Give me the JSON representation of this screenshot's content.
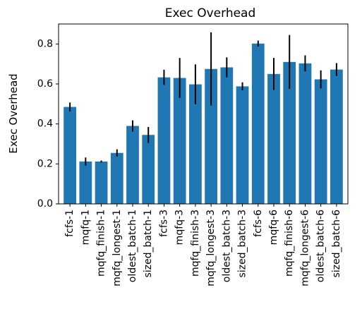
{
  "chart_data": {
    "type": "bar",
    "title": "Exec Overhead",
    "xlabel": "",
    "ylabel": "Exec Overhead",
    "ylim": [
      0,
      0.9
    ],
    "yticks": [
      0.0,
      0.2,
      0.4,
      0.6,
      0.8
    ],
    "ytick_labels": [
      "0.0",
      "0.2",
      "0.4",
      "0.6",
      "0.8"
    ],
    "grid": false,
    "bar_color": "#1f77b4",
    "error_color": "#000000",
    "categories": [
      "fcfs-1",
      "mqfq-1",
      "mqfq_finish-1",
      "mqfq_longest-1",
      "oldest_batch-1",
      "sized_batch-1",
      "fcfs-3",
      "mqfq-3",
      "mqfq_finish-3",
      "mqfq_longest-3",
      "oldest_batch-3",
      "sized_batch-3",
      "fcfs-6",
      "mqfq-6",
      "mqfq_finish-6",
      "mqfq_longest-6",
      "oldest_batch-6",
      "sized_batch-6"
    ],
    "values": [
      0.485,
      0.212,
      0.212,
      0.255,
      0.39,
      0.345,
      0.633,
      0.63,
      0.598,
      0.675,
      0.683,
      0.588,
      0.802,
      0.65,
      0.71,
      0.703,
      0.623,
      0.672
    ],
    "errors": [
      0.022,
      0.02,
      0.005,
      0.018,
      0.028,
      0.04,
      0.038,
      0.1,
      0.1,
      0.183,
      0.05,
      0.02,
      0.015,
      0.08,
      0.135,
      0.04,
      0.045,
      0.032
    ]
  }
}
